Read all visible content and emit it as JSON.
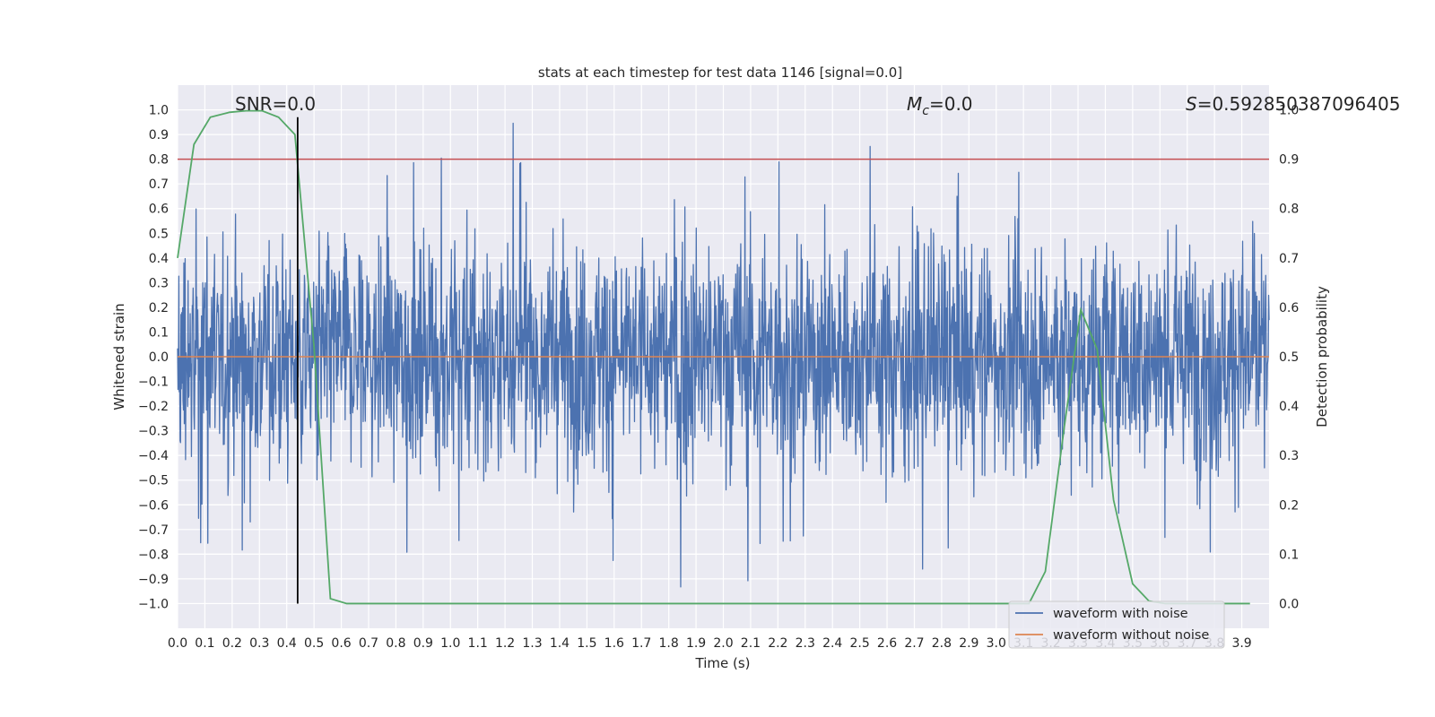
{
  "chart_data": {
    "type": "line",
    "title": "stats at each timestep for test data 1146 [signal=0.0]",
    "xlabel": "Time (s)",
    "ylabel": "Whitened strain",
    "y2label": "Detection probability",
    "xlim": [
      0.0,
      4.0
    ],
    "ylim": [
      -1.1,
      1.1
    ],
    "y2lim": [
      -0.05,
      1.05
    ],
    "x_ticks": [
      "0.0",
      "0.1",
      "0.2",
      "0.3",
      "0.4",
      "0.5",
      "0.6",
      "0.7",
      "0.8",
      "0.9",
      "1.0",
      "1.1",
      "1.2",
      "1.3",
      "1.4",
      "1.5",
      "1.6",
      "1.7",
      "1.8",
      "1.9",
      "2.0",
      "2.1",
      "2.2",
      "2.3",
      "2.4",
      "2.5",
      "2.6",
      "2.7",
      "2.8",
      "2.9",
      "3.0",
      "3.1",
      "3.2",
      "3.3",
      "3.4",
      "3.5",
      "3.6",
      "3.7",
      "3.8",
      "3.9"
    ],
    "y_ticks": [
      "1.0",
      "0.9",
      "0.8",
      "0.7",
      "0.6",
      "0.5",
      "0.4",
      "0.3",
      "0.2",
      "0.1",
      "0.0",
      "-0.1",
      "-0.2",
      "-0.3",
      "-0.4",
      "-0.5",
      "-0.6",
      "-0.7",
      "-0.8",
      "-0.9",
      "-1.0"
    ],
    "y2_ticks": [
      "1.0",
      "0.9",
      "0.8",
      "0.7",
      "0.6",
      "0.5",
      "0.4",
      "0.3",
      "0.2",
      "0.1",
      "0.0"
    ],
    "grid": true,
    "legend_position": "lower-right",
    "annotations": {
      "snr": "SNR=0.0",
      "mc_symbol": "M",
      "mc_sub": "c",
      "mc_value": "=0.0",
      "s_symbol": "S",
      "s_value": "=0.592850387096405"
    },
    "series": [
      {
        "name": "waveform with noise",
        "color": "#4c72b0",
        "axis": "left",
        "kind": "noise",
        "amplitude": 0.42,
        "peak_max": 0.98,
        "trough_min": -1.0
      },
      {
        "name": "waveform without noise",
        "color": "#dd8452",
        "axis": "left",
        "x": [
          0.0,
          4.0
        ],
        "y": [
          0.0,
          0.0
        ]
      },
      {
        "axis": "right",
        "color": "#55a868",
        "x": [
          0.0,
          0.06,
          0.12,
          0.19,
          0.25,
          0.31,
          0.37,
          0.43,
          0.5,
          0.56,
          0.62,
          0.68,
          1.0,
          2.0,
          3.0,
          3.12,
          3.18,
          3.25,
          3.31,
          3.37,
          3.43,
          3.5,
          3.56,
          3.62,
          3.68,
          3.75,
          3.93
        ],
        "y": [
          0.7,
          0.93,
          0.985,
          0.995,
          0.998,
          0.998,
          0.985,
          0.95,
          0.52,
          0.01,
          0.0,
          0.0,
          0.0,
          0.0,
          0.0,
          0.0,
          0.065,
          0.36,
          0.595,
          0.515,
          0.21,
          0.04,
          0.005,
          0.0,
          0.0,
          0.0,
          0.0
        ]
      }
    ],
    "threshold": {
      "axis": "right",
      "value": 0.9,
      "color": "#c44e52"
    },
    "marker": {
      "x": 0.44,
      "y_from": -1.0,
      "y_to": 0.97,
      "color": "#000000"
    }
  }
}
